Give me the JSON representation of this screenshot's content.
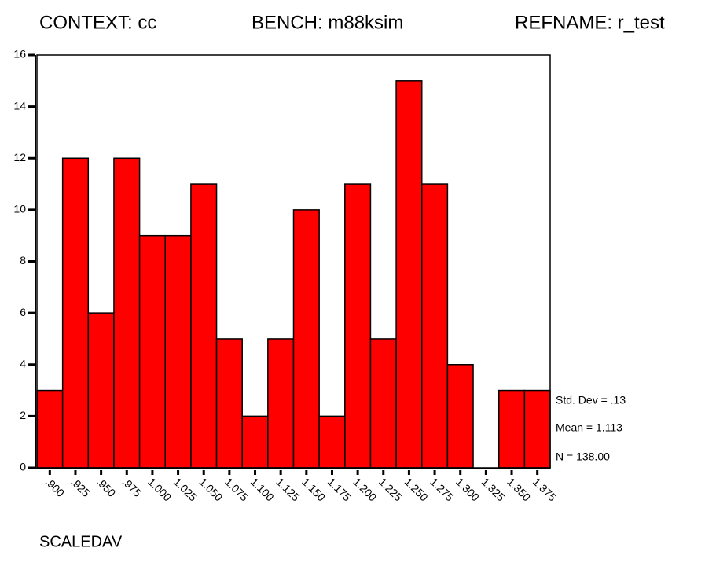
{
  "chart_data": {
    "type": "histogram",
    "title_parts": [
      "CONTEXT:  cc",
      "BENCH:  m88ksim",
      "REFNAME:  r_test"
    ],
    "x_label": "SCALEDAV",
    "bins": [
      0.8875,
      0.9125,
      0.9375,
      0.9625,
      0.9875,
      1.0125,
      1.0375,
      1.0625,
      1.0875,
      1.1125,
      1.1375,
      1.1625,
      1.1875,
      1.2125,
      1.2375,
      1.2625,
      1.2875,
      1.3125,
      1.3375,
      1.3625,
      1.3875
    ],
    "values": [
      3,
      12,
      6,
      12,
      9,
      9,
      11,
      5,
      2,
      5,
      10,
      2,
      11,
      5,
      15,
      11,
      4,
      0,
      3,
      3
    ],
    "color": "#ff0000",
    "xlim": [
      0.8875,
      1.3875
    ],
    "xticks": [
      {
        "value": 0.9,
        "label": ".900"
      },
      {
        "value": 0.925,
        "label": ".925"
      },
      {
        "value": 0.95,
        "label": ".950"
      },
      {
        "value": 0.975,
        "label": ".975"
      },
      {
        "value": 1.0,
        "label": "1.000"
      },
      {
        "value": 1.025,
        "label": "1.025"
      },
      {
        "value": 1.05,
        "label": "1.050"
      },
      {
        "value": 1.075,
        "label": "1.075"
      },
      {
        "value": 1.1,
        "label": "1.100"
      },
      {
        "value": 1.125,
        "label": "1.125"
      },
      {
        "value": 1.15,
        "label": "1.150"
      },
      {
        "value": 1.175,
        "label": "1.175"
      },
      {
        "value": 1.2,
        "label": "1.200"
      },
      {
        "value": 1.225,
        "label": "1.225"
      },
      {
        "value": 1.25,
        "label": "1.250"
      },
      {
        "value": 1.275,
        "label": "1.275"
      },
      {
        "value": 1.3,
        "label": "1.300"
      },
      {
        "value": 1.325,
        "label": "1.325"
      },
      {
        "value": 1.35,
        "label": "1.350"
      },
      {
        "value": 1.375,
        "label": "1.375"
      }
    ],
    "ylim": [
      0,
      16
    ],
    "yticks": [
      0,
      2,
      4,
      6,
      8,
      10,
      12,
      14,
      16
    ],
    "annotations": [
      "Std. Dev = .13",
      "Mean = 1.113",
      "N = 138.00"
    ]
  }
}
